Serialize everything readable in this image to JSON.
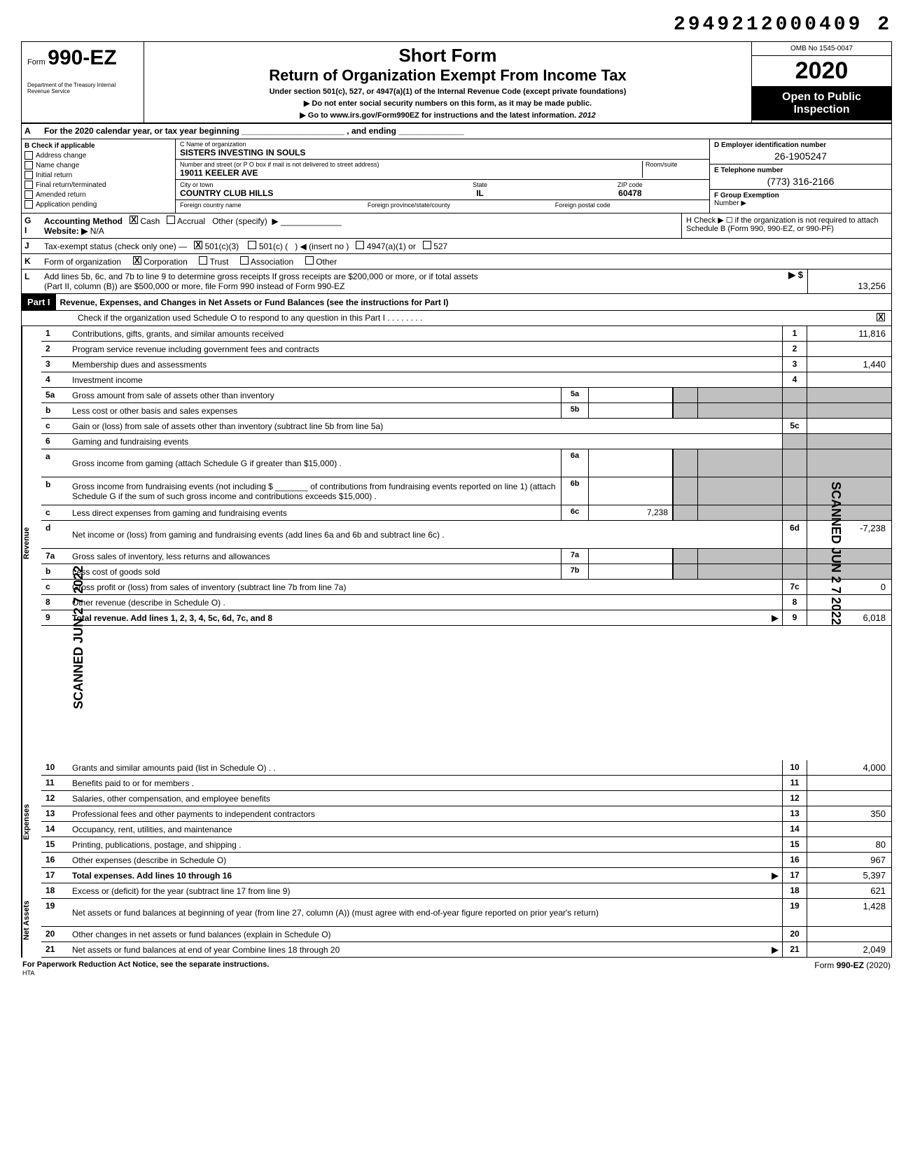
{
  "top_id": "2949212000409  2",
  "form": {
    "prefix": "Form",
    "number": "990-EZ",
    "dept": "Department of the Treasury\nInternal Revenue Service"
  },
  "title": {
    "main": "Short Form",
    "sub": "Return of Organization Exempt From Income Tax",
    "line1": "Under section 501(c), 527, or 4947(a)(1) of the Internal Revenue Code (except private foundations)",
    "line2": "Do not enter social security numbers on this form, as it may be made public.",
    "line3": "Go to www.irs.gov/Form990EZ for instructions and the latest information.",
    "handwritten": "2012"
  },
  "yearbox": {
    "omb": "OMB No 1545-0047",
    "year": "2020",
    "open1": "Open to Public",
    "open2": "Inspection"
  },
  "lineA": "For the 2020 calendar year, or tax year beginning ______________________ , and ending ______________",
  "sectionB": {
    "header": "Check if applicable",
    "items": [
      "Address change",
      "Name change",
      "Initial return",
      "Final return/terminated",
      "Amended return",
      "Application pending"
    ]
  },
  "sectionC": {
    "name_label": "C  Name of organization",
    "name": "SISTERS INVESTING IN SOULS",
    "addr_label": "Number and street (or P O  box if mail is not delivered to street address)",
    "room_label": "Room/suite",
    "addr": "19011 KEELER AVE",
    "city_label": "City or town",
    "state_label": "State",
    "zip_label": "ZIP code",
    "city": "COUNTRY CLUB HILLS",
    "state": "IL",
    "zip": "60478",
    "foreign_country": "Foreign country name",
    "foreign_prov": "Foreign province/state/county",
    "foreign_postal": "Foreign postal code"
  },
  "sectionD": {
    "label": "D  Employer identification number",
    "value": "26-1905247"
  },
  "sectionE": {
    "label": "E  Telephone number",
    "value": "(773) 316-2166"
  },
  "sectionF": {
    "label": "F  Group Exemption",
    "label2": "Number ▶"
  },
  "lineG": {
    "label": "Accounting Method",
    "cash": "Cash",
    "accrual": "Accrual",
    "other": "Other (specify)"
  },
  "lineH": "H  Check ▶ ☐  if the organization is not required to attach Schedule B (Form 990, 990-EZ, or 990-PF)",
  "lineI": {
    "label": "Website: ▶",
    "value": "N/A"
  },
  "lineJ": {
    "label": "Tax-exempt status (check only one) —",
    "opt1": "501(c)(3)",
    "opt2": "501(c) (",
    "insert": ") ◀  (insert no )",
    "opt3": "4947(a)(1) or",
    "opt4": "527"
  },
  "lineK": {
    "label": "Form of organization",
    "corp": "Corporation",
    "trust": "Trust",
    "assoc": "Association",
    "other": "Other"
  },
  "lineL": {
    "text1": "Add lines 5b, 6c, and 7b to line 9 to determine gross receipts  If gross receipts are $200,000 or more, or if total assets",
    "text2": "(Part II, column (B)) are $500,000 or more, file Form 990 instead of Form 990-EZ",
    "arrow": "▶ $",
    "value": "13,256"
  },
  "part1": {
    "label": "Part I",
    "title": "Revenue, Expenses, and Changes in Net Assets or Fund Balances (see the instructions for Part I)",
    "check": "Check if the organization used Schedule O to respond to any question in this Part I  .   .   .   .   .   .   .   ."
  },
  "side_labels": {
    "rev": "Revenue",
    "exp": "Expenses",
    "net": "Net Assets"
  },
  "rows": [
    {
      "n": "1",
      "desc": "Contributions, gifts, grants, and similar amounts received",
      "end_n": "1",
      "end_v": "11,816"
    },
    {
      "n": "2",
      "desc": "Program service revenue including government fees and contracts",
      "end_n": "2",
      "end_v": ""
    },
    {
      "n": "3",
      "desc": "Membership dues and assessments",
      "end_n": "3",
      "end_v": "1,440"
    },
    {
      "n": "4",
      "desc": "Investment income",
      "end_n": "4",
      "end_v": ""
    },
    {
      "n": "5a",
      "desc": "Gross amount from sale of assets other than inventory",
      "mid_n": "5a",
      "mid_v": "",
      "shaded": true
    },
    {
      "n": "b",
      "desc": "Less  cost or other basis and sales expenses",
      "mid_n": "5b",
      "mid_v": "",
      "shaded": true
    },
    {
      "n": "c",
      "desc": "Gain or (loss) from sale of assets other than inventory (subtract line 5b from line 5a)",
      "end_n": "5c",
      "end_v": ""
    },
    {
      "n": "6",
      "desc": "Gaming and fundraising events",
      "shaded_end": true
    },
    {
      "n": "a",
      "desc": "Gross income from gaming (attach Schedule G if greater than $15,000) .",
      "mid_n": "6a",
      "mid_v": "",
      "shaded": true,
      "multiline": true
    },
    {
      "n": "b",
      "desc": "Gross income from fundraising events (not including    $ _______  of contributions from fundraising events reported on line 1) (attach Schedule G if the sum of such gross income and contributions exceeds $15,000) .",
      "mid_n": "6b",
      "mid_v": "",
      "shaded": true,
      "multiline": true
    },
    {
      "n": "c",
      "desc": "Less  direct expenses from gaming and fundraising events",
      "mid_n": "6c",
      "mid_v": "7,238",
      "shaded": true
    },
    {
      "n": "d",
      "desc": "Net income or (loss) from gaming and fundraising events (add lines 6a and 6b and subtract line 6c) .",
      "end_n": "6d",
      "end_v": "-7,238",
      "multiline": true
    },
    {
      "n": "7a",
      "desc": "Gross sales of inventory, less returns and allowances",
      "mid_n": "7a",
      "mid_v": "",
      "shaded": true
    },
    {
      "n": "b",
      "desc": "Less  cost of goods sold",
      "mid_n": "7b",
      "mid_v": "",
      "shaded": true
    },
    {
      "n": "c",
      "desc": "Gross profit or (loss) from sales of inventory (subtract line 7b from line 7a)",
      "end_n": "7c",
      "end_v": "0"
    },
    {
      "n": "8",
      "desc": "Other revenue (describe in Schedule O) .",
      "end_n": "8",
      "end_v": ""
    },
    {
      "n": "9",
      "desc": "Total revenue. Add lines 1, 2, 3, 4, 5c, 6d, 7c, and 8",
      "end_n": "9",
      "end_v": "6,018",
      "bold": true,
      "arrow": true
    },
    {
      "n": "10",
      "desc": "Grants and similar amounts paid (list in Schedule O) .  .",
      "end_n": "10",
      "end_v": "4,000"
    },
    {
      "n": "11",
      "desc": "Benefits paid to or for members .",
      "end_n": "11",
      "end_v": ""
    },
    {
      "n": "12",
      "desc": "Salaries, other compensation, and employee benefits",
      "end_n": "12",
      "end_v": ""
    },
    {
      "n": "13",
      "desc": "Professional fees and other payments to independent contractors",
      "end_n": "13",
      "end_v": "350"
    },
    {
      "n": "14",
      "desc": "Occupancy, rent, utilities, and maintenance",
      "end_n": "14",
      "end_v": ""
    },
    {
      "n": "15",
      "desc": "Printing, publications, postage, and shipping .",
      "end_n": "15",
      "end_v": "80"
    },
    {
      "n": "16",
      "desc": "Other expenses (describe in Schedule O)",
      "end_n": "16",
      "end_v": "967"
    },
    {
      "n": "17",
      "desc": "Total expenses. Add lines 10 through 16",
      "end_n": "17",
      "end_v": "5,397",
      "bold": true,
      "arrow": true
    },
    {
      "n": "18",
      "desc": "Excess or (deficit) for the year (subtract line 17 from line 9)",
      "end_n": "18",
      "end_v": "621"
    },
    {
      "n": "19",
      "desc": "Net assets or fund balances at beginning of year (from line 27, column (A)) (must agree with end-of-year figure reported on prior year's return)",
      "end_n": "19",
      "end_v": "1,428",
      "multiline": true
    },
    {
      "n": "20",
      "desc": "Other changes in net assets or fund balances (explain in Schedule O)",
      "end_n": "20",
      "end_v": ""
    },
    {
      "n": "21",
      "desc": "Net assets or fund balances at end of year  Combine lines 18 through 20",
      "end_n": "21",
      "end_v": "2,049",
      "arrow": true
    }
  ],
  "footer": {
    "left": "For Paperwork Reduction Act Notice, see the separate instructions.",
    "hta": "HTA",
    "right": "Form 990-EZ (2020)"
  },
  "stamps": {
    "s1": "SCANNED JUN 2 7 2022",
    "s2": "SCANNED JUN 2 7 2022"
  },
  "colors": {
    "bg": "#ffffff",
    "text": "#000000",
    "shade": "#c0c0c0",
    "header_bg": "#000000",
    "header_fg": "#ffffff"
  }
}
